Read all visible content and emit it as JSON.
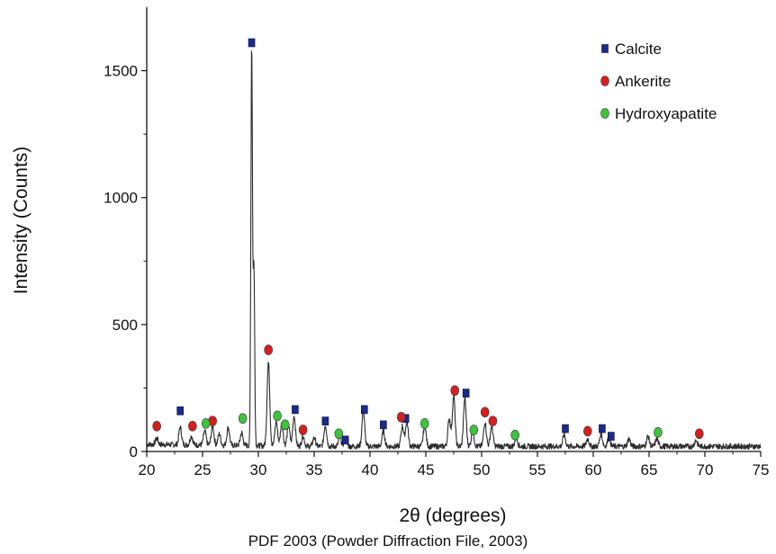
{
  "chart_data": {
    "type": "line",
    "title": "",
    "xlabel": "2θ (degrees)",
    "ylabel": "Intensity (Counts)",
    "xlim": [
      20,
      75
    ],
    "ylim": [
      0,
      1750
    ],
    "x_ticks": [
      20,
      25,
      30,
      35,
      40,
      45,
      50,
      55,
      60,
      65,
      70,
      75
    ],
    "y_ticks": [
      0,
      500,
      1000,
      1500
    ],
    "grid": false,
    "legend_position": "top-right",
    "baseline": 20,
    "peaks": [
      {
        "x": 20.9,
        "y": 25
      },
      {
        "x": 23.0,
        "y": 70
      },
      {
        "x": 24.0,
        "y": 35
      },
      {
        "x": 25.2,
        "y": 55
      },
      {
        "x": 25.9,
        "y": 75
      },
      {
        "x": 26.5,
        "y": 45
      },
      {
        "x": 27.3,
        "y": 70
      },
      {
        "x": 28.5,
        "y": 50
      },
      {
        "x": 29.4,
        "y": 1570
      },
      {
        "x": 29.6,
        "y": 700
      },
      {
        "x": 30.9,
        "y": 330
      },
      {
        "x": 31.6,
        "y": 95
      },
      {
        "x": 32.1,
        "y": 90
      },
      {
        "x": 32.7,
        "y": 80
      },
      {
        "x": 33.2,
        "y": 120
      },
      {
        "x": 34.0,
        "y": 40
      },
      {
        "x": 35.0,
        "y": 35
      },
      {
        "x": 36.0,
        "y": 85
      },
      {
        "x": 37.3,
        "y": 35
      },
      {
        "x": 37.8,
        "y": 30
      },
      {
        "x": 39.4,
        "y": 140
      },
      {
        "x": 41.2,
        "y": 60
      },
      {
        "x": 42.9,
        "y": 80
      },
      {
        "x": 43.3,
        "y": 100
      },
      {
        "x": 44.9,
        "y": 85
      },
      {
        "x": 47.1,
        "y": 110
      },
      {
        "x": 47.5,
        "y": 200
      },
      {
        "x": 48.5,
        "y": 190
      },
      {
        "x": 49.2,
        "y": 60
      },
      {
        "x": 50.3,
        "y": 95
      },
      {
        "x": 50.9,
        "y": 80
      },
      {
        "x": 53.1,
        "y": 35
      },
      {
        "x": 57.4,
        "y": 45
      },
      {
        "x": 59.5,
        "y": 30
      },
      {
        "x": 60.7,
        "y": 50
      },
      {
        "x": 61.4,
        "y": 35
      },
      {
        "x": 63.2,
        "y": 30
      },
      {
        "x": 64.9,
        "y": 40
      },
      {
        "x": 65.7,
        "y": 30
      },
      {
        "x": 69.2,
        "y": 25
      }
    ],
    "series": [
      {
        "name": "Calcite",
        "marker": "square",
        "color": "#1a2a8c",
        "points": [
          {
            "x": 23.0,
            "y": 160
          },
          {
            "x": 29.4,
            "y": 1610
          },
          {
            "x": 33.3,
            "y": 165
          },
          {
            "x": 36.0,
            "y": 120
          },
          {
            "x": 37.8,
            "y": 45
          },
          {
            "x": 39.5,
            "y": 165
          },
          {
            "x": 41.2,
            "y": 105
          },
          {
            "x": 43.2,
            "y": 130
          },
          {
            "x": 48.6,
            "y": 230
          },
          {
            "x": 57.5,
            "y": 90
          },
          {
            "x": 60.8,
            "y": 90
          },
          {
            "x": 61.6,
            "y": 60
          }
        ]
      },
      {
        "name": "Ankerite",
        "marker": "ellipse",
        "color": "#d42020",
        "points": [
          {
            "x": 20.9,
            "y": 100
          },
          {
            "x": 24.1,
            "y": 100
          },
          {
            "x": 25.9,
            "y": 120
          },
          {
            "x": 30.9,
            "y": 400
          },
          {
            "x": 34.0,
            "y": 85
          },
          {
            "x": 42.8,
            "y": 135
          },
          {
            "x": 47.6,
            "y": 240
          },
          {
            "x": 50.3,
            "y": 155
          },
          {
            "x": 51.0,
            "y": 120
          },
          {
            "x": 59.5,
            "y": 80
          },
          {
            "x": 69.5,
            "y": 70
          }
        ]
      },
      {
        "name": "Hydroxyapatite",
        "marker": "ellipse",
        "color": "#3cc43c",
        "points": [
          {
            "x": 25.3,
            "y": 110
          },
          {
            "x": 28.6,
            "y": 130
          },
          {
            "x": 31.7,
            "y": 140
          },
          {
            "x": 32.4,
            "y": 105
          },
          {
            "x": 37.2,
            "y": 70
          },
          {
            "x": 44.9,
            "y": 110
          },
          {
            "x": 49.3,
            "y": 85
          },
          {
            "x": 53.0,
            "y": 65
          },
          {
            "x": 65.8,
            "y": 75
          }
        ]
      }
    ]
  },
  "caption": "PDF 2003 (Powder Diffraction File, 2003)"
}
